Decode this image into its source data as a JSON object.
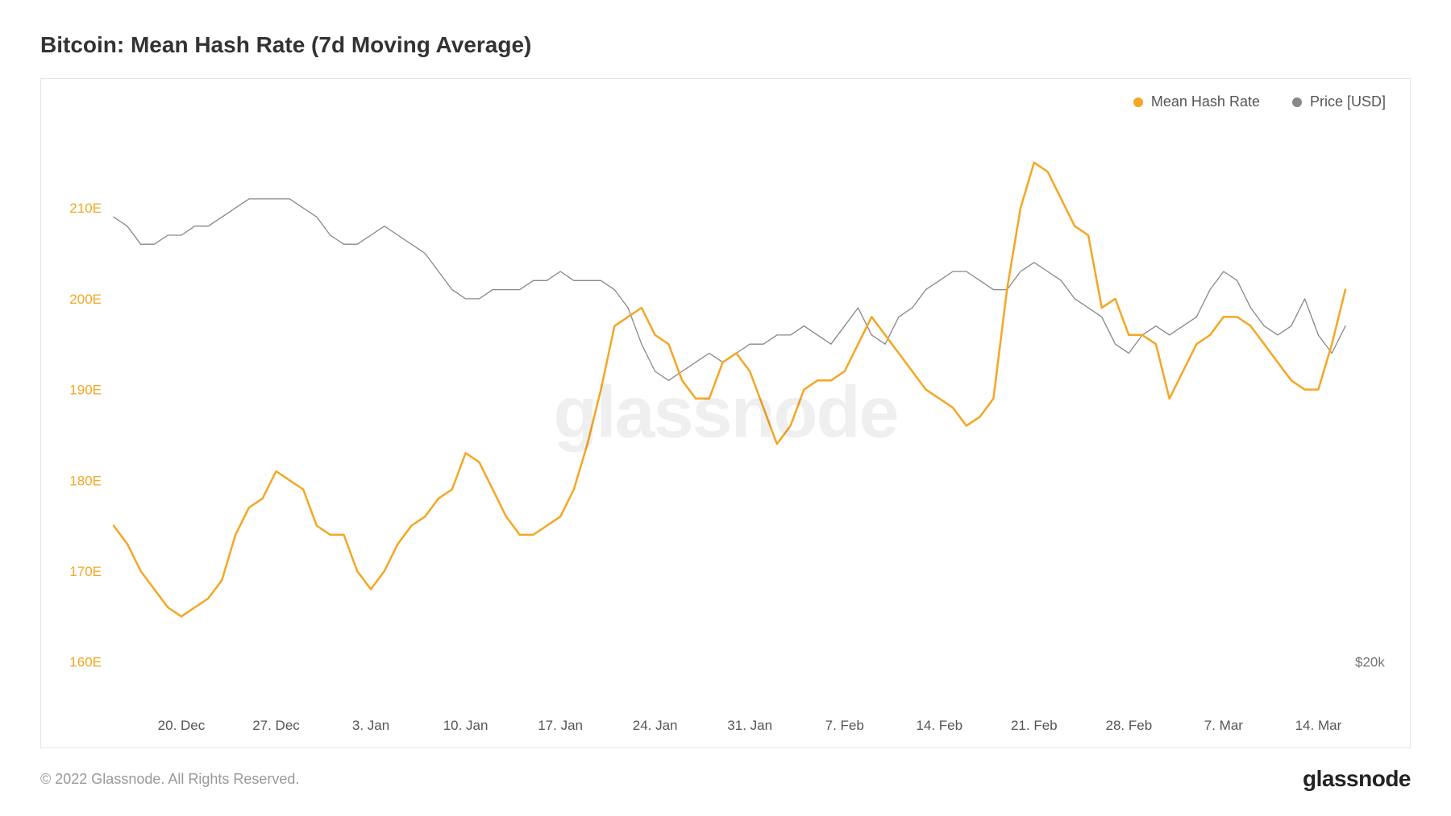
{
  "title": "Bitcoin: Mean Hash Rate (7d Moving Average)",
  "watermark": "glassnode",
  "copyright": "© 2022 Glassnode. All Rights Reserved.",
  "brand": "glassnode",
  "legend": {
    "hash": {
      "label": "Mean Hash Rate",
      "color": "#f5a623"
    },
    "price": {
      "label": "Price [USD]",
      "color": "#888888"
    }
  },
  "chart": {
    "type": "line",
    "background_color": "#ffffff",
    "border_color": "#e5e5e5",
    "x": {
      "ticks": [
        "20. Dec",
        "27. Dec",
        "3. Jan",
        "10. Jan",
        "17. Jan",
        "24. Jan",
        "31. Jan",
        "7. Feb",
        "14. Feb",
        "21. Feb",
        "28. Feb",
        "7. Mar",
        "14. Mar"
      ],
      "tick_indices": [
        5,
        12,
        19,
        26,
        33,
        40,
        47,
        54,
        61,
        68,
        75,
        82,
        89
      ],
      "n_points": 92
    },
    "y_left": {
      "label_suffix": "E",
      "min": 155,
      "max": 218,
      "ticks": [
        160,
        170,
        180,
        190,
        200,
        210
      ],
      "color": "#f5a623"
    },
    "y_right": {
      "ticks": [
        {
          "v": 160,
          "label": "$20k"
        }
      ],
      "color": "#777777"
    },
    "series_hash": {
      "color": "#f5a623",
      "width": 2.5,
      "values": [
        175,
        173,
        170,
        168,
        166,
        165,
        166,
        167,
        169,
        174,
        177,
        178,
        181,
        180,
        179,
        175,
        174,
        174,
        170,
        168,
        170,
        173,
        175,
        176,
        178,
        179,
        183,
        182,
        179,
        176,
        174,
        174,
        175,
        176,
        179,
        184,
        190,
        197,
        198,
        199,
        196,
        195,
        191,
        189,
        189,
        193,
        194,
        192,
        188,
        184,
        186,
        190,
        191,
        191,
        192,
        195,
        198,
        196,
        194,
        192,
        190,
        189,
        188,
        186,
        187,
        189,
        201,
        210,
        215,
        214,
        211,
        208,
        207,
        199,
        200,
        196,
        196,
        195,
        189,
        192,
        195,
        196,
        198,
        198,
        197,
        195,
        193,
        191,
        190,
        190,
        195,
        201
      ]
    },
    "series_price": {
      "color": "#888888",
      "width": 1.3,
      "values": [
        209,
        208,
        206,
        206,
        207,
        207,
        208,
        208,
        209,
        210,
        211,
        211,
        211,
        211,
        210,
        209,
        207,
        206,
        206,
        207,
        208,
        207,
        206,
        205,
        203,
        201,
        200,
        200,
        201,
        201,
        201,
        202,
        202,
        203,
        202,
        202,
        202,
        201,
        199,
        195,
        192,
        191,
        192,
        193,
        194,
        193,
        194,
        195,
        195,
        196,
        196,
        197,
        196,
        195,
        197,
        199,
        196,
        195,
        198,
        199,
        201,
        202,
        203,
        203,
        202,
        201,
        201,
        203,
        204,
        203,
        202,
        200,
        199,
        198,
        195,
        194,
        196,
        197,
        196,
        197,
        198,
        201,
        203,
        202,
        199,
        197,
        196,
        197,
        200,
        196,
        194,
        197
      ]
    }
  }
}
